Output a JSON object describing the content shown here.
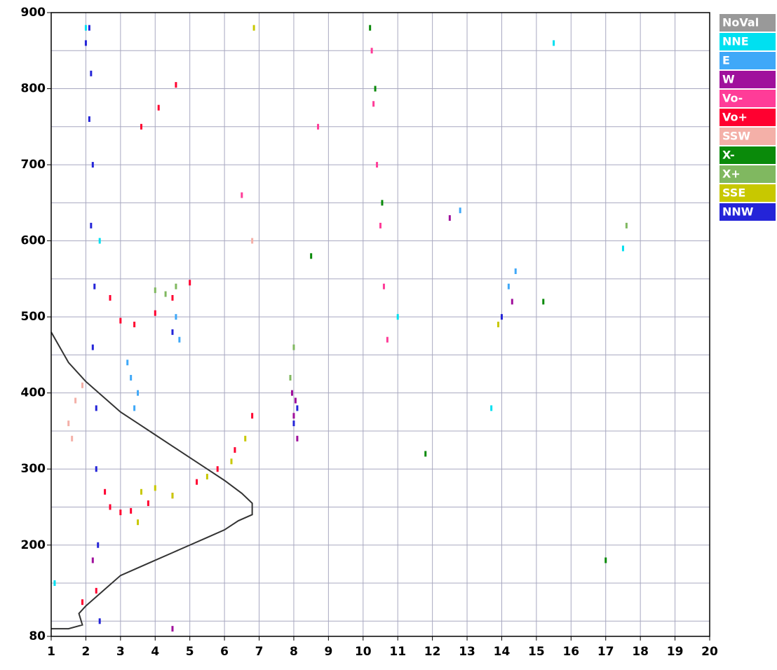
{
  "chart_data": {
    "type": "scatter",
    "xlim": [
      1,
      20
    ],
    "ylim": [
      80,
      900
    ],
    "xticks": [
      1,
      2,
      3,
      4,
      5,
      6,
      7,
      8,
      9,
      10,
      11,
      12,
      13,
      14,
      15,
      16,
      17,
      18,
      19,
      20
    ],
    "yticks": [
      80,
      200,
      300,
      400,
      500,
      600,
      700,
      800,
      900
    ],
    "ygrid": [
      100,
      150,
      200,
      250,
      300,
      350,
      400,
      450,
      500,
      550,
      600,
      650,
      700,
      750,
      800,
      850
    ],
    "grid": true,
    "legend": "right",
    "series": [
      {
        "name": "NoVal",
        "color": "#999999",
        "x": [],
        "y": []
      },
      {
        "name": "NNE",
        "color": "#00e0f0",
        "x": [
          1.1,
          2.0,
          15.5,
          17.5,
          11.0,
          13.7,
          2.4
        ],
        "y": [
          150,
          880,
          860,
          590,
          500,
          380,
          600
        ]
      },
      {
        "name": "E",
        "color": "#3fa8f8",
        "x": [
          3.3,
          3.5,
          3.4,
          3.2,
          4.6,
          4.7,
          14.2,
          14.4,
          12.8
        ],
        "y": [
          420,
          400,
          380,
          440,
          500,
          470,
          540,
          560,
          640
        ]
      },
      {
        "name": "W",
        "color": "#a0109c",
        "x": [
          8.0,
          8.1,
          7.95,
          8.05,
          2.2,
          14.3,
          4.5,
          12.5
        ],
        "y": [
          370,
          340,
          400,
          390,
          180,
          520,
          90,
          630
        ]
      },
      {
        "name": "Vo-",
        "color": "#ff3c98",
        "x": [
          10.25,
          10.3,
          10.4,
          10.5,
          10.6,
          10.7,
          6.5,
          8.7
        ],
        "y": [
          850,
          780,
          700,
          620,
          540,
          470,
          660,
          750
        ]
      },
      {
        "name": "Vo+",
        "color": "#ff0030",
        "x": [
          2.55,
          2.7,
          3.0,
          3.3,
          3.8,
          4.5,
          5.2,
          5.8,
          6.3,
          6.8,
          2.7,
          3.0,
          3.4,
          4.0,
          4.5,
          5.0,
          3.6,
          4.1,
          4.6,
          1.9,
          2.3
        ],
        "y": [
          270,
          250,
          243,
          245,
          255,
          265,
          283,
          300,
          325,
          370,
          525,
          495,
          490,
          505,
          525,
          545,
          750,
          775,
          805,
          125,
          140
        ]
      },
      {
        "name": "SSW",
        "color": "#f4b0a8",
        "x": [
          1.5,
          1.7,
          1.9,
          1.6,
          6.8
        ],
        "y": [
          360,
          390,
          410,
          340,
          600
        ]
      },
      {
        "name": "X-",
        "color": "#0a8a0a",
        "x": [
          10.2,
          10.35,
          10.55,
          8.5,
          17.0,
          15.2,
          11.8
        ],
        "y": [
          880,
          800,
          650,
          580,
          180,
          520,
          320
        ]
      },
      {
        "name": "X+",
        "color": "#80b860",
        "x": [
          4.0,
          4.3,
          4.6,
          7.9,
          8.0,
          17.6
        ],
        "y": [
          535,
          530,
          540,
          420,
          460,
          620
        ]
      },
      {
        "name": "SSE",
        "color": "#c8c800",
        "x": [
          3.6,
          4.0,
          4.5,
          5.5,
          6.2,
          6.6,
          3.5,
          13.9,
          6.85
        ],
        "y": [
          270,
          275,
          265,
          290,
          310,
          340,
          230,
          490,
          880
        ]
      },
      {
        "name": "NNW",
        "color": "#2424d8",
        "x": [
          2.1,
          2.15,
          2.1,
          2.2,
          2.15,
          2.25,
          2.2,
          2.3,
          2.3,
          2.35,
          2.4,
          8.0,
          8.1,
          14.0,
          4.5,
          2.0
        ],
        "y": [
          880,
          820,
          760,
          700,
          620,
          540,
          460,
          380,
          300,
          200,
          100,
          360,
          380,
          500,
          480,
          860
        ]
      }
    ],
    "profile": {
      "color": "#333333",
      "x": [
        1,
        1.5,
        2,
        2.5,
        3,
        3.5,
        4,
        4.5,
        5,
        5.5,
        6,
        6.5,
        6.8,
        6.8,
        6.4,
        6,
        5.5,
        5,
        4.5,
        4,
        3.5,
        3,
        2.5,
        2,
        1.8,
        1.9,
        1.5,
        1
      ],
      "y": [
        480,
        440,
        415,
        395,
        375,
        360,
        345,
        330,
        315,
        300,
        285,
        268,
        255,
        240,
        232,
        220,
        210,
        200,
        190,
        180,
        170,
        160,
        140,
        120,
        110,
        95,
        90,
        90
      ]
    }
  }
}
